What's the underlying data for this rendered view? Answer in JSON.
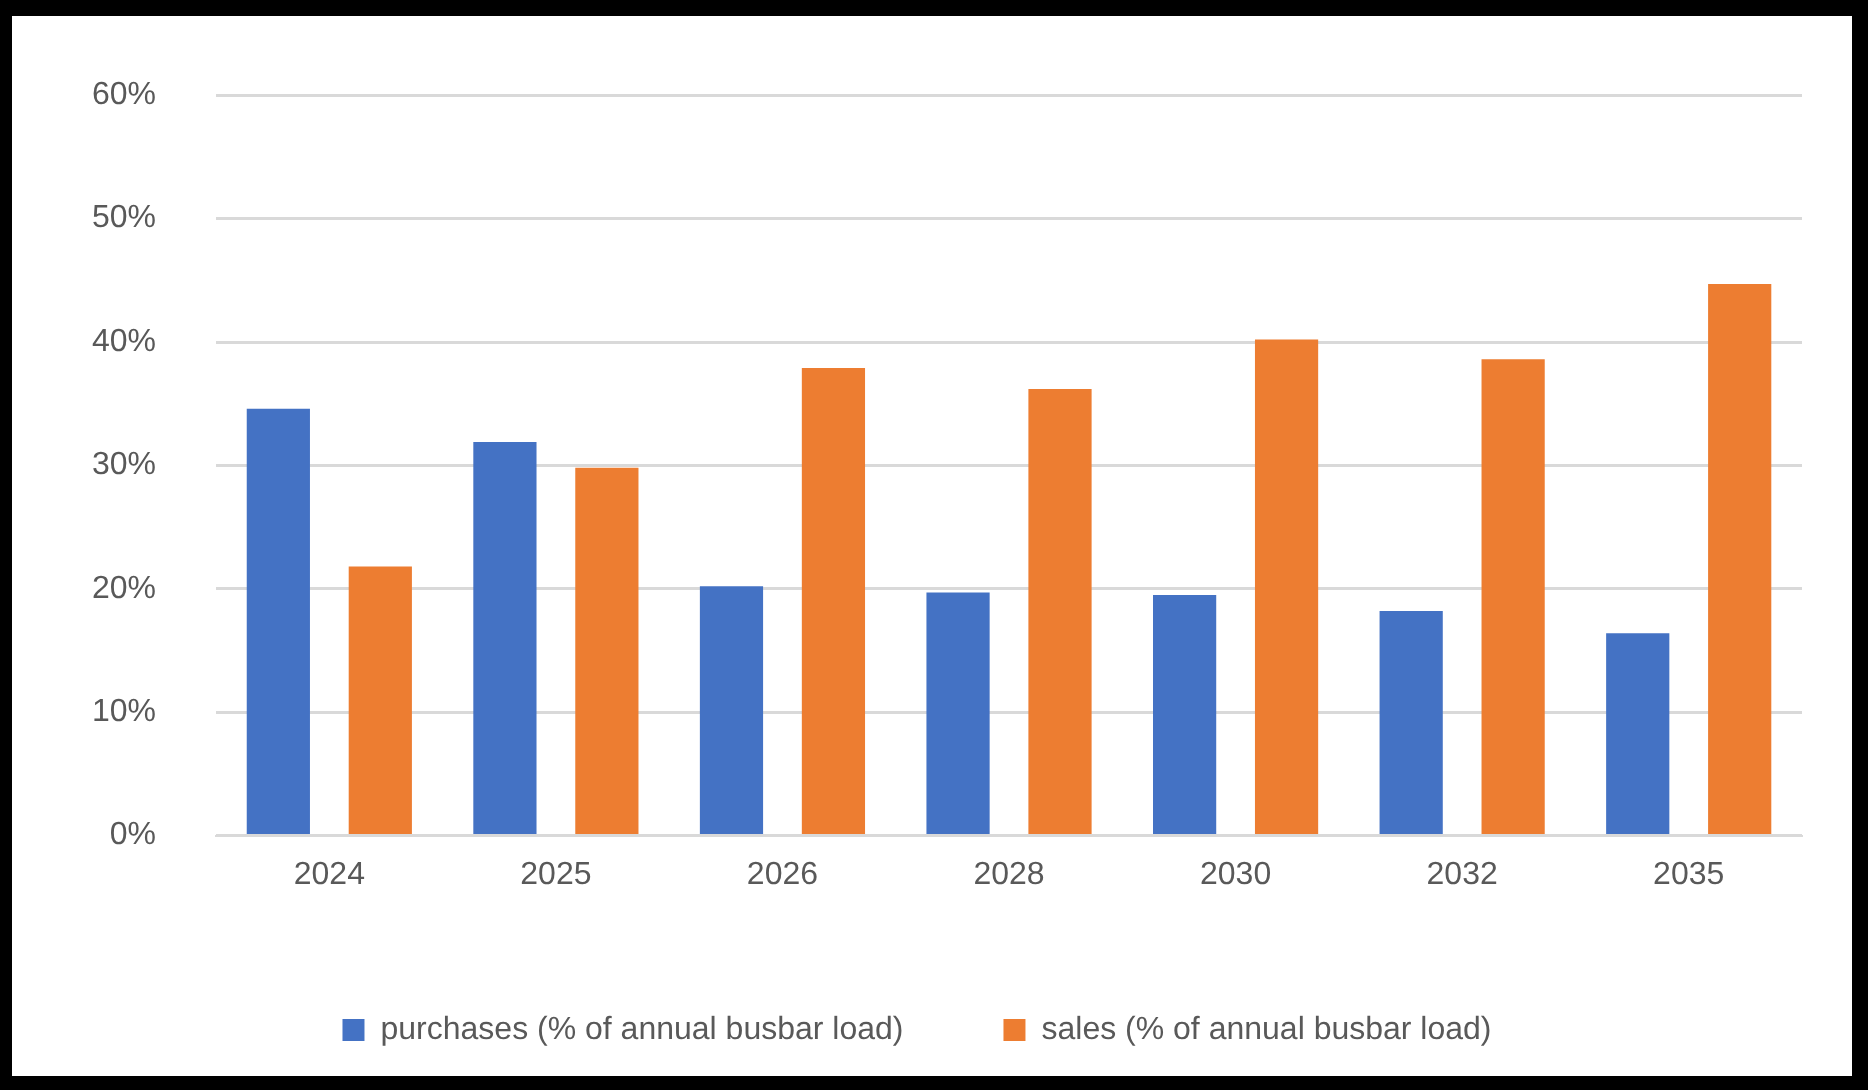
{
  "chart_data": {
    "type": "bar",
    "categories": [
      "2024",
      "2025",
      "2026",
      "2028",
      "2030",
      "2032",
      "2035"
    ],
    "series": [
      {
        "name": "purchases (% of annual busbar load)",
        "color": "#4472c4",
        "values": [
          34.6,
          31.9,
          20.2,
          19.7,
          19.5,
          18.2,
          16.4
        ]
      },
      {
        "name": "sales (% of annual busbar load)",
        "color": "#ed7d31",
        "values": [
          21.8,
          29.8,
          37.9,
          36.2,
          40.2,
          38.6,
          44.7
        ]
      }
    ],
    "ylim": [
      0,
      60
    ],
    "yticks": [
      {
        "value": 0,
        "label": "0%"
      },
      {
        "value": 10,
        "label": "10%"
      },
      {
        "value": 20,
        "label": "20%"
      },
      {
        "value": 30,
        "label": "30%"
      },
      {
        "value": 40,
        "label": "40%"
      },
      {
        "value": 50,
        "label": "50%"
      },
      {
        "value": 60,
        "label": "60%"
      }
    ],
    "grid": "y",
    "legend": "bottom"
  }
}
